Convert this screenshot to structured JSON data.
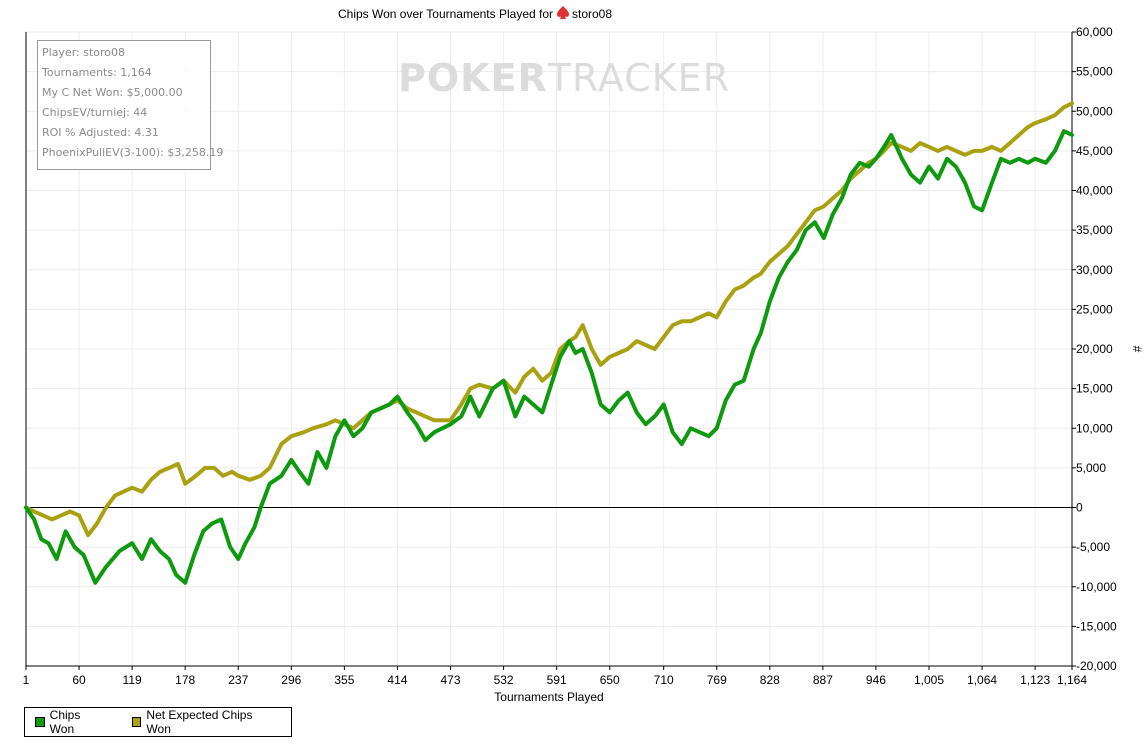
{
  "chart_data": {
    "type": "line",
    "title": "Chips Won over Tournaments Played for",
    "player_name": "storo08",
    "xlabel": "Tournaments Played",
    "ylabel": "#",
    "xlim": [
      1,
      1164
    ],
    "ylim": [
      -20000,
      60000
    ],
    "x_ticks": [
      1,
      60,
      119,
      178,
      237,
      296,
      355,
      414,
      473,
      532,
      591,
      650,
      710,
      769,
      828,
      887,
      946,
      1005,
      1064,
      1123,
      1164
    ],
    "x_tick_labels": [
      "1",
      "60",
      "119",
      "178",
      "237",
      "296",
      "355",
      "414",
      "473",
      "532",
      "591",
      "650",
      "710",
      "769",
      "828",
      "887",
      "946",
      "1,005",
      "1,064",
      "1,123",
      "1,164"
    ],
    "y_ticks": [
      -20000,
      -15000,
      -10000,
      -5000,
      0,
      5000,
      10000,
      15000,
      20000,
      25000,
      30000,
      35000,
      40000,
      45000,
      50000,
      55000,
      60000
    ],
    "y_tick_labels": [
      "-20,000",
      "-15,000",
      "-10,000",
      "-5,000",
      "0",
      "5,000",
      "10,000",
      "15,000",
      "20,000",
      "25,000",
      "30,000",
      "35,000",
      "40,000",
      "45,000",
      "50,000",
      "55,000",
      "60,000"
    ],
    "grid": true,
    "legend_position": "bottom-left",
    "series": [
      {
        "name": "Chips Won",
        "color": "#0e9a0e",
        "points": [
          [
            1,
            0
          ],
          [
            10,
            -1500
          ],
          [
            18,
            -4000
          ],
          [
            26,
            -4500
          ],
          [
            35,
            -6500
          ],
          [
            45,
            -3000
          ],
          [
            55,
            -5000
          ],
          [
            65,
            -6000
          ],
          [
            78,
            -9500
          ],
          [
            90,
            -7500
          ],
          [
            105,
            -5500
          ],
          [
            119,
            -4500
          ],
          [
            130,
            -6500
          ],
          [
            140,
            -4000
          ],
          [
            150,
            -5500
          ],
          [
            160,
            -6500
          ],
          [
            168,
            -8500
          ],
          [
            178,
            -9500
          ],
          [
            188,
            -6000
          ],
          [
            198,
            -3000
          ],
          [
            208,
            -2000
          ],
          [
            218,
            -1500
          ],
          [
            228,
            -5000
          ],
          [
            237,
            -6500
          ],
          [
            245,
            -4500
          ],
          [
            255,
            -2500
          ],
          [
            262,
            0
          ],
          [
            272,
            3000
          ],
          [
            285,
            4000
          ],
          [
            296,
            6000
          ],
          [
            305,
            4500
          ],
          [
            315,
            3000
          ],
          [
            325,
            7000
          ],
          [
            335,
            5000
          ],
          [
            345,
            9000
          ],
          [
            355,
            11000
          ],
          [
            365,
            9000
          ],
          [
            375,
            10000
          ],
          [
            385,
            12000
          ],
          [
            395,
            12500
          ],
          [
            405,
            13000
          ],
          [
            414,
            14000
          ],
          [
            425,
            12000
          ],
          [
            435,
            10500
          ],
          [
            445,
            8500
          ],
          [
            455,
            9500
          ],
          [
            473,
            10500
          ],
          [
            485,
            11500
          ],
          [
            495,
            14000
          ],
          [
            505,
            11500
          ],
          [
            520,
            15000
          ],
          [
            532,
            16000
          ],
          [
            545,
            11500
          ],
          [
            555,
            14000
          ],
          [
            565,
            13000
          ],
          [
            575,
            12000
          ],
          [
            585,
            15500
          ],
          [
            595,
            19000
          ],
          [
            605,
            21000
          ],
          [
            612,
            19500
          ],
          [
            620,
            20000
          ],
          [
            630,
            17000
          ],
          [
            640,
            13000
          ],
          [
            650,
            12000
          ],
          [
            660,
            13500
          ],
          [
            670,
            14500
          ],
          [
            680,
            12000
          ],
          [
            690,
            10500
          ],
          [
            700,
            11500
          ],
          [
            710,
            13000
          ],
          [
            720,
            9500
          ],
          [
            730,
            8000
          ],
          [
            740,
            10000
          ],
          [
            750,
            9500
          ],
          [
            760,
            9000
          ],
          [
            769,
            10000
          ],
          [
            779,
            13500
          ],
          [
            789,
            15500
          ],
          [
            799,
            16000
          ],
          [
            810,
            20000
          ],
          [
            818,
            22000
          ],
          [
            828,
            26000
          ],
          [
            838,
            29000
          ],
          [
            848,
            31000
          ],
          [
            858,
            32500
          ],
          [
            868,
            35000
          ],
          [
            878,
            36000
          ],
          [
            888,
            34000
          ],
          [
            898,
            37000
          ],
          [
            908,
            39000
          ],
          [
            918,
            42000
          ],
          [
            928,
            43500
          ],
          [
            938,
            43000
          ],
          [
            946,
            44000
          ],
          [
            955,
            45500
          ],
          [
            963,
            47000
          ],
          [
            975,
            44000
          ],
          [
            985,
            42000
          ],
          [
            995,
            41000
          ],
          [
            1005,
            43000
          ],
          [
            1015,
            41500
          ],
          [
            1025,
            44000
          ],
          [
            1035,
            43000
          ],
          [
            1045,
            41000
          ],
          [
            1055,
            38000
          ],
          [
            1064,
            37500
          ],
          [
            1075,
            41000
          ],
          [
            1085,
            44000
          ],
          [
            1095,
            43500
          ],
          [
            1105,
            44000
          ],
          [
            1115,
            43500
          ],
          [
            1123,
            44000
          ],
          [
            1135,
            43500
          ],
          [
            1145,
            45000
          ],
          [
            1155,
            47500
          ],
          [
            1164,
            47000
          ]
        ]
      },
      {
        "name": "Net Expected Chips Won",
        "color": "#a9a012",
        "points": [
          [
            1,
            0
          ],
          [
            10,
            -500
          ],
          [
            20,
            -1000
          ],
          [
            30,
            -1500
          ],
          [
            40,
            -1000
          ],
          [
            50,
            -500
          ],
          [
            60,
            -1000
          ],
          [
            70,
            -3500
          ],
          [
            80,
            -2000
          ],
          [
            90,
            0
          ],
          [
            100,
            1500
          ],
          [
            119,
            2500
          ],
          [
            130,
            2000
          ],
          [
            140,
            3500
          ],
          [
            150,
            4500
          ],
          [
            160,
            5000
          ],
          [
            170,
            5500
          ],
          [
            178,
            3000
          ],
          [
            190,
            4000
          ],
          [
            200,
            5000
          ],
          [
            210,
            5000
          ],
          [
            220,
            4000
          ],
          [
            230,
            4500
          ],
          [
            237,
            4000
          ],
          [
            250,
            3500
          ],
          [
            262,
            4000
          ],
          [
            272,
            5000
          ],
          [
            285,
            8000
          ],
          [
            296,
            9000
          ],
          [
            310,
            9500
          ],
          [
            320,
            10000
          ],
          [
            335,
            10500
          ],
          [
            345,
            11000
          ],
          [
            355,
            10500
          ],
          [
            365,
            10000
          ],
          [
            375,
            11000
          ],
          [
            385,
            12000
          ],
          [
            395,
            12500
          ],
          [
            405,
            13000
          ],
          [
            414,
            13500
          ],
          [
            425,
            12500
          ],
          [
            435,
            12000
          ],
          [
            445,
            11500
          ],
          [
            455,
            11000
          ],
          [
            473,
            11000
          ],
          [
            485,
            13000
          ],
          [
            495,
            15000
          ],
          [
            505,
            15500
          ],
          [
            520,
            15000
          ],
          [
            532,
            16000
          ],
          [
            545,
            14500
          ],
          [
            555,
            16500
          ],
          [
            565,
            17500
          ],
          [
            575,
            16000
          ],
          [
            585,
            17000
          ],
          [
            595,
            20000
          ],
          [
            605,
            21000
          ],
          [
            612,
            21500
          ],
          [
            620,
            23000
          ],
          [
            630,
            20000
          ],
          [
            640,
            18000
          ],
          [
            650,
            19000
          ],
          [
            660,
            19500
          ],
          [
            670,
            20000
          ],
          [
            680,
            21000
          ],
          [
            690,
            20500
          ],
          [
            700,
            20000
          ],
          [
            710,
            21500
          ],
          [
            720,
            23000
          ],
          [
            730,
            23500
          ],
          [
            740,
            23500
          ],
          [
            750,
            24000
          ],
          [
            760,
            24500
          ],
          [
            769,
            24000
          ],
          [
            779,
            26000
          ],
          [
            789,
            27500
          ],
          [
            799,
            28000
          ],
          [
            810,
            29000
          ],
          [
            818,
            29500
          ],
          [
            828,
            31000
          ],
          [
            838,
            32000
          ],
          [
            848,
            33000
          ],
          [
            858,
            34500
          ],
          [
            868,
            36000
          ],
          [
            878,
            37500
          ],
          [
            888,
            38000
          ],
          [
            898,
            39000
          ],
          [
            908,
            40000
          ],
          [
            918,
            41500
          ],
          [
            928,
            42500
          ],
          [
            938,
            43500
          ],
          [
            946,
            44000
          ],
          [
            955,
            45000
          ],
          [
            963,
            46000
          ],
          [
            975,
            45500
          ],
          [
            985,
            45000
          ],
          [
            995,
            46000
          ],
          [
            1005,
            45500
          ],
          [
            1015,
            45000
          ],
          [
            1025,
            45500
          ],
          [
            1035,
            45000
          ],
          [
            1045,
            44500
          ],
          [
            1055,
            45000
          ],
          [
            1064,
            45000
          ],
          [
            1075,
            45500
          ],
          [
            1085,
            45000
          ],
          [
            1095,
            46000
          ],
          [
            1105,
            47000
          ],
          [
            1115,
            48000
          ],
          [
            1123,
            48500
          ],
          [
            1135,
            49000
          ],
          [
            1145,
            49500
          ],
          [
            1155,
            50500
          ],
          [
            1164,
            51000
          ]
        ]
      }
    ]
  },
  "stats": {
    "player": "Player: storo08",
    "tournaments": "Tournaments: 1,164",
    "net_won": "My C Net Won: $5,000.00",
    "chips_ev": "ChipsEV/turniej: 44",
    "roi": "ROI % Adjusted: 4.31",
    "phoenix": "PhoenixPullEV(3-100): $3,258.19"
  },
  "watermark": {
    "part1": "POKER",
    "part2": "TRACKER"
  },
  "legend": {
    "items": [
      {
        "label": "Chips Won",
        "color": "#0e9a0e"
      },
      {
        "label": "Net Expected Chips Won",
        "color": "#a9a012"
      }
    ]
  },
  "colors": {
    "zero_line": "#000000",
    "grid": "#ececec",
    "title_icon": "#e03030"
  }
}
